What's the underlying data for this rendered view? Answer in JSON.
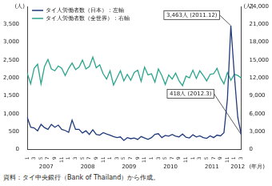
{
  "chart_data": {
    "type": "line",
    "categories": [
      "1",
      null,
      "3",
      null,
      "5",
      null,
      "7",
      null,
      "9",
      null,
      "11",
      null,
      "1",
      null,
      "3",
      null,
      "5",
      null,
      "7",
      null,
      "9",
      null,
      "11",
      null,
      "1",
      null,
      "3",
      null,
      "5",
      null,
      "7",
      null,
      "9",
      null,
      "11",
      null,
      "1",
      null,
      "3",
      null,
      "5",
      null,
      "7",
      null,
      "9",
      null,
      "11",
      null,
      "1",
      null,
      "3",
      null,
      "5",
      null,
      "7",
      null,
      "9",
      null,
      "11",
      null,
      "1",
      null,
      "3"
    ],
    "x_groups": [
      {
        "label": "2007",
        "months": 12
      },
      {
        "label": "2008",
        "months": 12
      },
      {
        "label": "2009",
        "months": 12
      },
      {
        "label": "2010",
        "months": 12
      },
      {
        "label": "2011",
        "months": 12
      },
      {
        "label": "2012",
        "months": 3
      }
    ],
    "x_unit": "(年月)",
    "y_unit": "(人)",
    "y2_unit": "(人)",
    "series": [
      {
        "name": "タイ人労働者数（日本）：左軸",
        "color": "#1f3a7a",
        "axis": "y",
        "values": [
          900,
          620,
          600,
          520,
          700,
          610,
          560,
          700,
          620,
          680,
          560,
          530,
          480,
          820,
          560,
          560,
          460,
          520,
          420,
          550,
          420,
          400,
          470,
          430,
          400,
          360,
          330,
          350,
          250,
          330,
          300,
          320,
          280,
          360,
          320,
          280,
          330,
          420,
          440,
          330,
          390,
          370,
          420,
          370,
          350,
          430,
          340,
          320,
          410,
          350,
          380,
          330,
          310,
          380,
          330,
          400,
          380,
          470,
          1400,
          3463,
          2100,
          900,
          418
        ]
      },
      {
        "name": "タイ人労働者数（全世界）：右軸",
        "color": "#2aa58c",
        "axis": "y2",
        "values": [
          12800,
          11000,
          13600,
          14300,
          11000,
          13900,
          15100,
          13500,
          13200,
          14000,
          13600,
          12400,
          13600,
          14500,
          13400,
          13800,
          15000,
          13500,
          13900,
          15500,
          13700,
          14200,
          12700,
          11800,
          13200,
          10800,
          12000,
          13200,
          11500,
          12600,
          11600,
          12900,
          13300,
          11400,
          13800,
          12500,
          12700,
          11300,
          13500,
          12400,
          10900,
          12500,
          11800,
          12800,
          11500,
          10700,
          12300,
          12000,
          13300,
          11900,
          13200,
          12400,
          11500,
          12600,
          12700,
          13600,
          12000,
          11000,
          12900,
          11600,
          12600,
          12400,
          12000
        ]
      }
    ],
    "ylim": [
      0,
      4000
    ],
    "yticks": [
      0,
      500,
      {
        "value": 1000,
        "label": "1,000"
      },
      {
        "value": 1500,
        "label": "1,500"
      },
      {
        "value": 2000,
        "label": "2,000"
      },
      {
        "value": 2500,
        "label": "2,500"
      },
      {
        "value": 3000,
        "label": "3,000"
      },
      {
        "value": 3500,
        "label": "3,500"
      }
    ],
    "y2lim": [
      0,
      24000
    ],
    "y2ticks": [
      0,
      {
        "value": 3000,
        "label": "3,000"
      },
      {
        "value": 6000,
        "label": "6,000"
      },
      {
        "value": 9000,
        "label": "9,000"
      },
      {
        "value": 12000,
        "label": "12,000"
      },
      {
        "value": 15000,
        "label": "15,000"
      },
      {
        "value": 18000,
        "label": "18,000"
      },
      {
        "value": 21000,
        "label": "21,000"
      },
      {
        "value": 24000,
        "label": "24,000"
      }
    ],
    "annotations": [
      {
        "text": "3,463人 (2011.12)",
        "series": 0,
        "index": 59
      },
      {
        "text": "418人 (2012.3)",
        "series": 0,
        "index": 62
      }
    ],
    "legend": "top-left",
    "grid": false,
    "source": "資料：タイ中央銀行（Bank of Thailand）から作成。"
  }
}
